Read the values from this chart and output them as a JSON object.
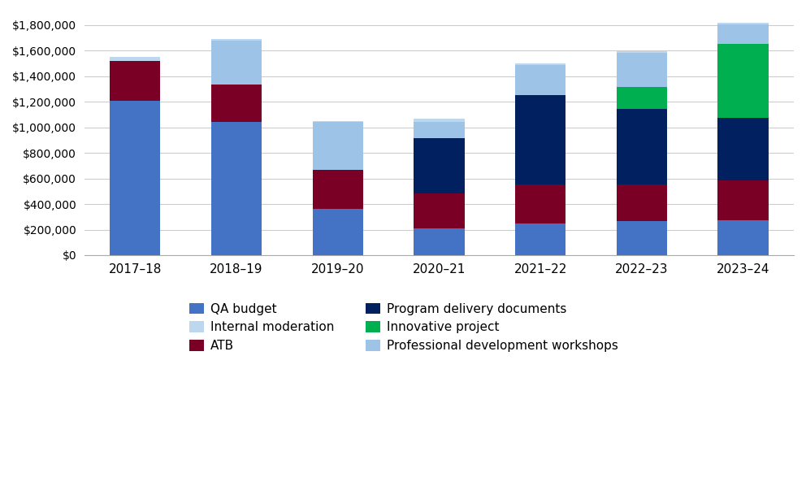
{
  "categories": [
    "2017–18",
    "2018–19",
    "2019–20",
    "2020–21",
    "2021–22",
    "2022–23",
    "2023–24"
  ],
  "series_order": [
    "QA budget",
    "ATB",
    "Program delivery documents",
    "Innovative project",
    "Professional development workshops",
    "Internal moderation"
  ],
  "series": {
    "QA budget": {
      "values": [
        1210000,
        1040000,
        360000,
        210000,
        250000,
        265000,
        270000
      ],
      "color": "#4472C4"
    },
    "ATB": {
      "values": [
        310000,
        295000,
        305000,
        275000,
        300000,
        290000,
        315000
      ],
      "color": "#7B0025"
    },
    "Program delivery documents": {
      "values": [
        0,
        0,
        0,
        430000,
        700000,
        590000,
        490000
      ],
      "color": "#002060"
    },
    "Innovative project": {
      "values": [
        0,
        0,
        0,
        0,
        0,
        170000,
        580000
      ],
      "color": "#00B050"
    },
    "Professional development workshops": {
      "values": [
        0,
        340000,
        375000,
        130000,
        240000,
        270000,
        150000
      ],
      "color": "#9DC3E6"
    },
    "Internal moderation": {
      "values": [
        30000,
        15000,
        10000,
        20000,
        10000,
        10000,
        15000
      ],
      "color": "#BDD7EE"
    }
  },
  "legend_order": [
    "QA budget",
    "Internal moderation",
    "ATB",
    "Program delivery documents",
    "Innovative project",
    "Professional development workshops"
  ],
  "ylim": [
    0,
    1900000
  ],
  "yticks": [
    0,
    200000,
    400000,
    600000,
    800000,
    1000000,
    1200000,
    1400000,
    1600000,
    1800000
  ],
  "background_color": "#ffffff",
  "grid_color": "#CCCCCC",
  "bar_width": 0.5
}
